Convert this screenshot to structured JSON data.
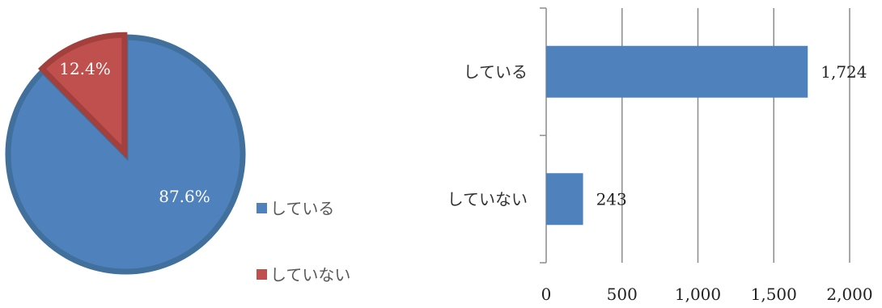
{
  "colors": {
    "series_1": "#4F81BD",
    "series_1_border": "#41709C",
    "series_2": "#C0504D",
    "series_2_border": "#A33F3C",
    "grid": "#8C8C8C"
  },
  "chart_data": [
    {
      "type": "pie",
      "categories": [
        "している",
        "していない"
      ],
      "values": [
        87.6,
        12.4
      ],
      "data_labels": [
        "87.6%",
        "12.4%"
      ],
      "legend": {
        "position": "right",
        "items": [
          "している",
          "していない"
        ]
      }
    },
    {
      "type": "bar",
      "orientation": "horizontal",
      "categories": [
        "している",
        "していない"
      ],
      "values": [
        1724,
        243
      ],
      "data_labels": [
        "1,724",
        "243"
      ],
      "xlim": [
        0,
        2000
      ],
      "x_ticks": [
        0,
        500,
        1000,
        1500,
        2000
      ],
      "x_tick_labels": [
        "0",
        "500",
        "1,000",
        "1,500",
        "2,000"
      ],
      "grid": true
    }
  ]
}
